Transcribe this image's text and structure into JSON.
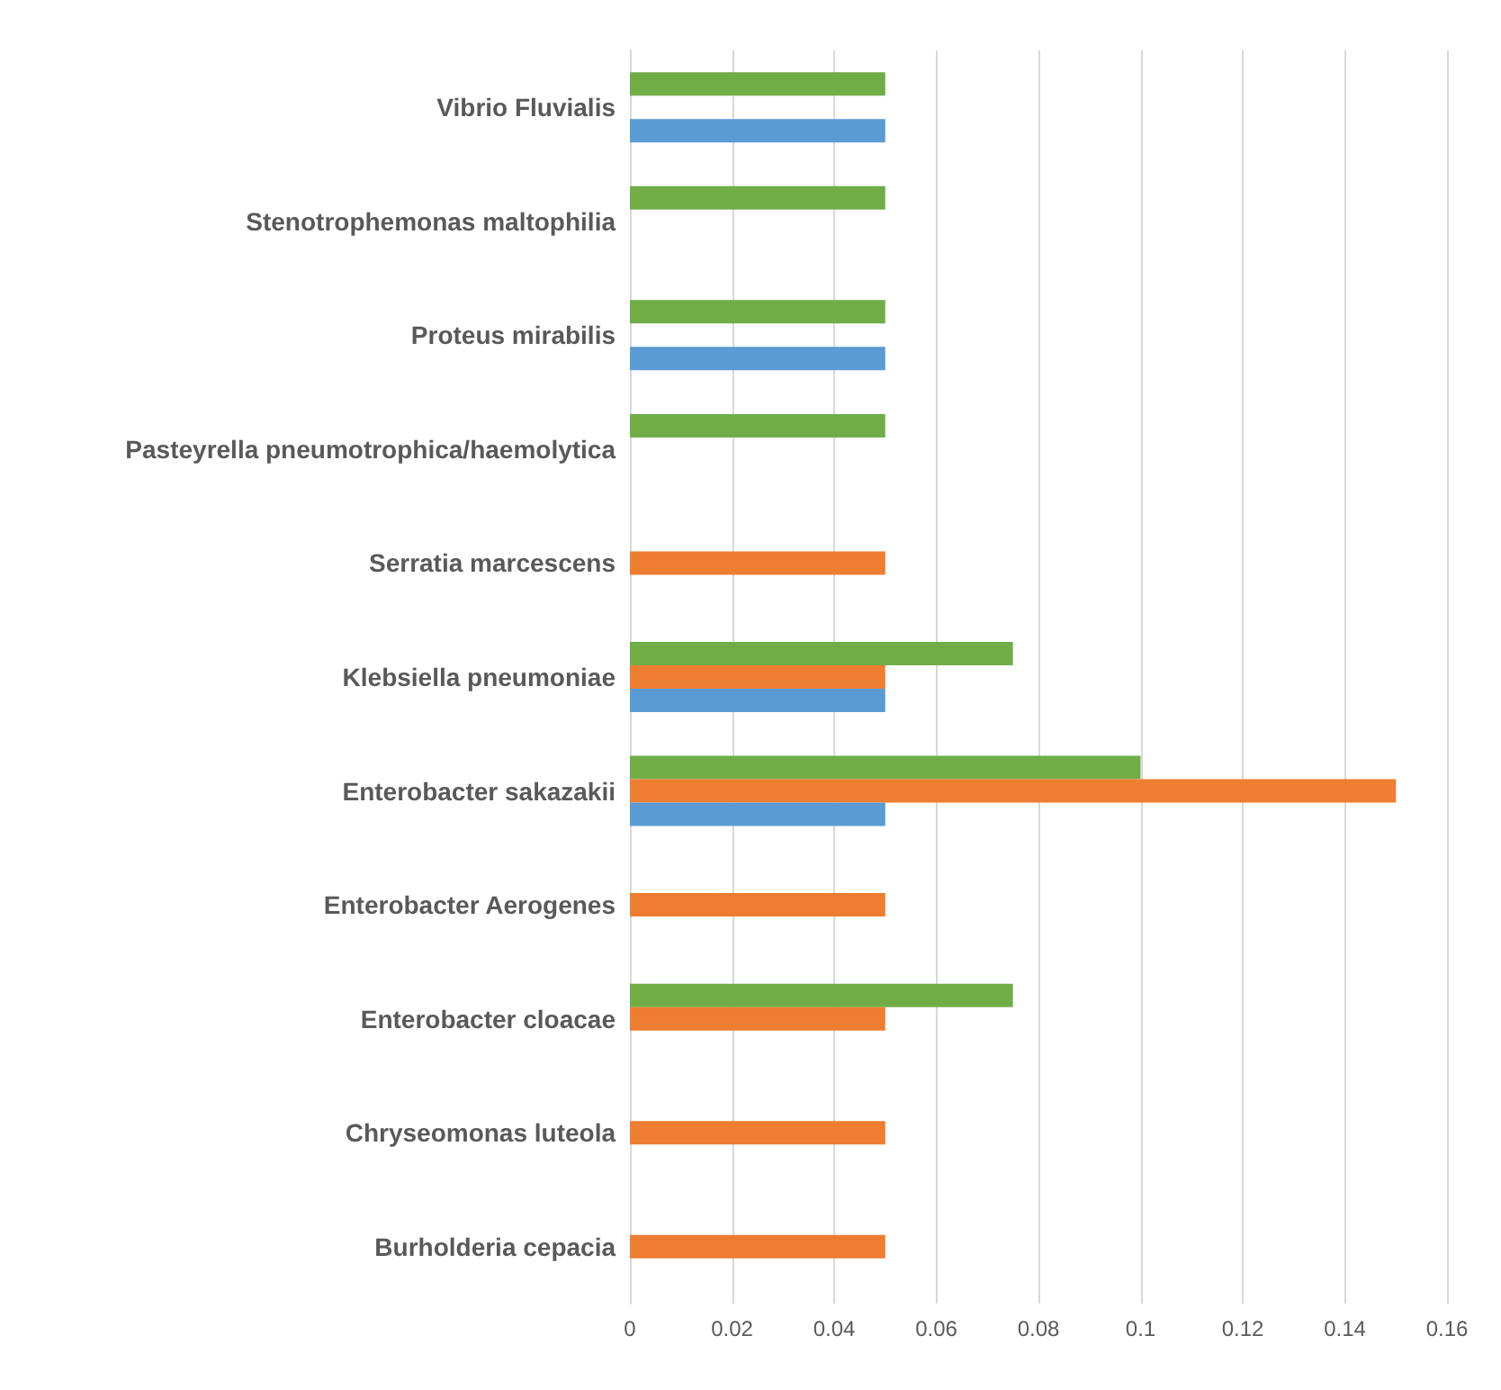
{
  "chart_data": {
    "type": "bar",
    "orientation": "horizontal",
    "categories": [
      "Vibrio Fluvialis",
      "Stenotrophemonas maltophilia",
      "Proteus mirabilis",
      "Pasteyrella pneumotrophica/haemolytica",
      "Serratia marcescens",
      "Klebsiella pneumoniae",
      "Enterobacter sakazakii",
      "Enterobacter Aerogenes",
      "Enterobacter cloacae",
      "Chryseomonas luteola",
      "Burholderia cepacia"
    ],
    "series": [
      {
        "color": "#5b9bd5",
        "values": [
          0.05,
          null,
          0.05,
          null,
          null,
          0.05,
          0.05,
          null,
          null,
          null,
          null
        ]
      },
      {
        "color": "#ed7d31",
        "values": [
          null,
          null,
          null,
          null,
          0.05,
          0.05,
          0.15,
          0.05,
          0.05,
          0.05,
          0.05
        ]
      },
      {
        "color": "#70ad47",
        "values": [
          0.05,
          0.05,
          0.05,
          0.05,
          null,
          0.075,
          0.1,
          null,
          0.075,
          null,
          null
        ]
      }
    ],
    "xlim": [
      0,
      0.16
    ],
    "xticks": [
      0,
      0.02,
      0.04,
      0.06,
      0.08,
      0.1,
      0.12,
      0.14,
      0.16
    ],
    "grid": "x"
  }
}
